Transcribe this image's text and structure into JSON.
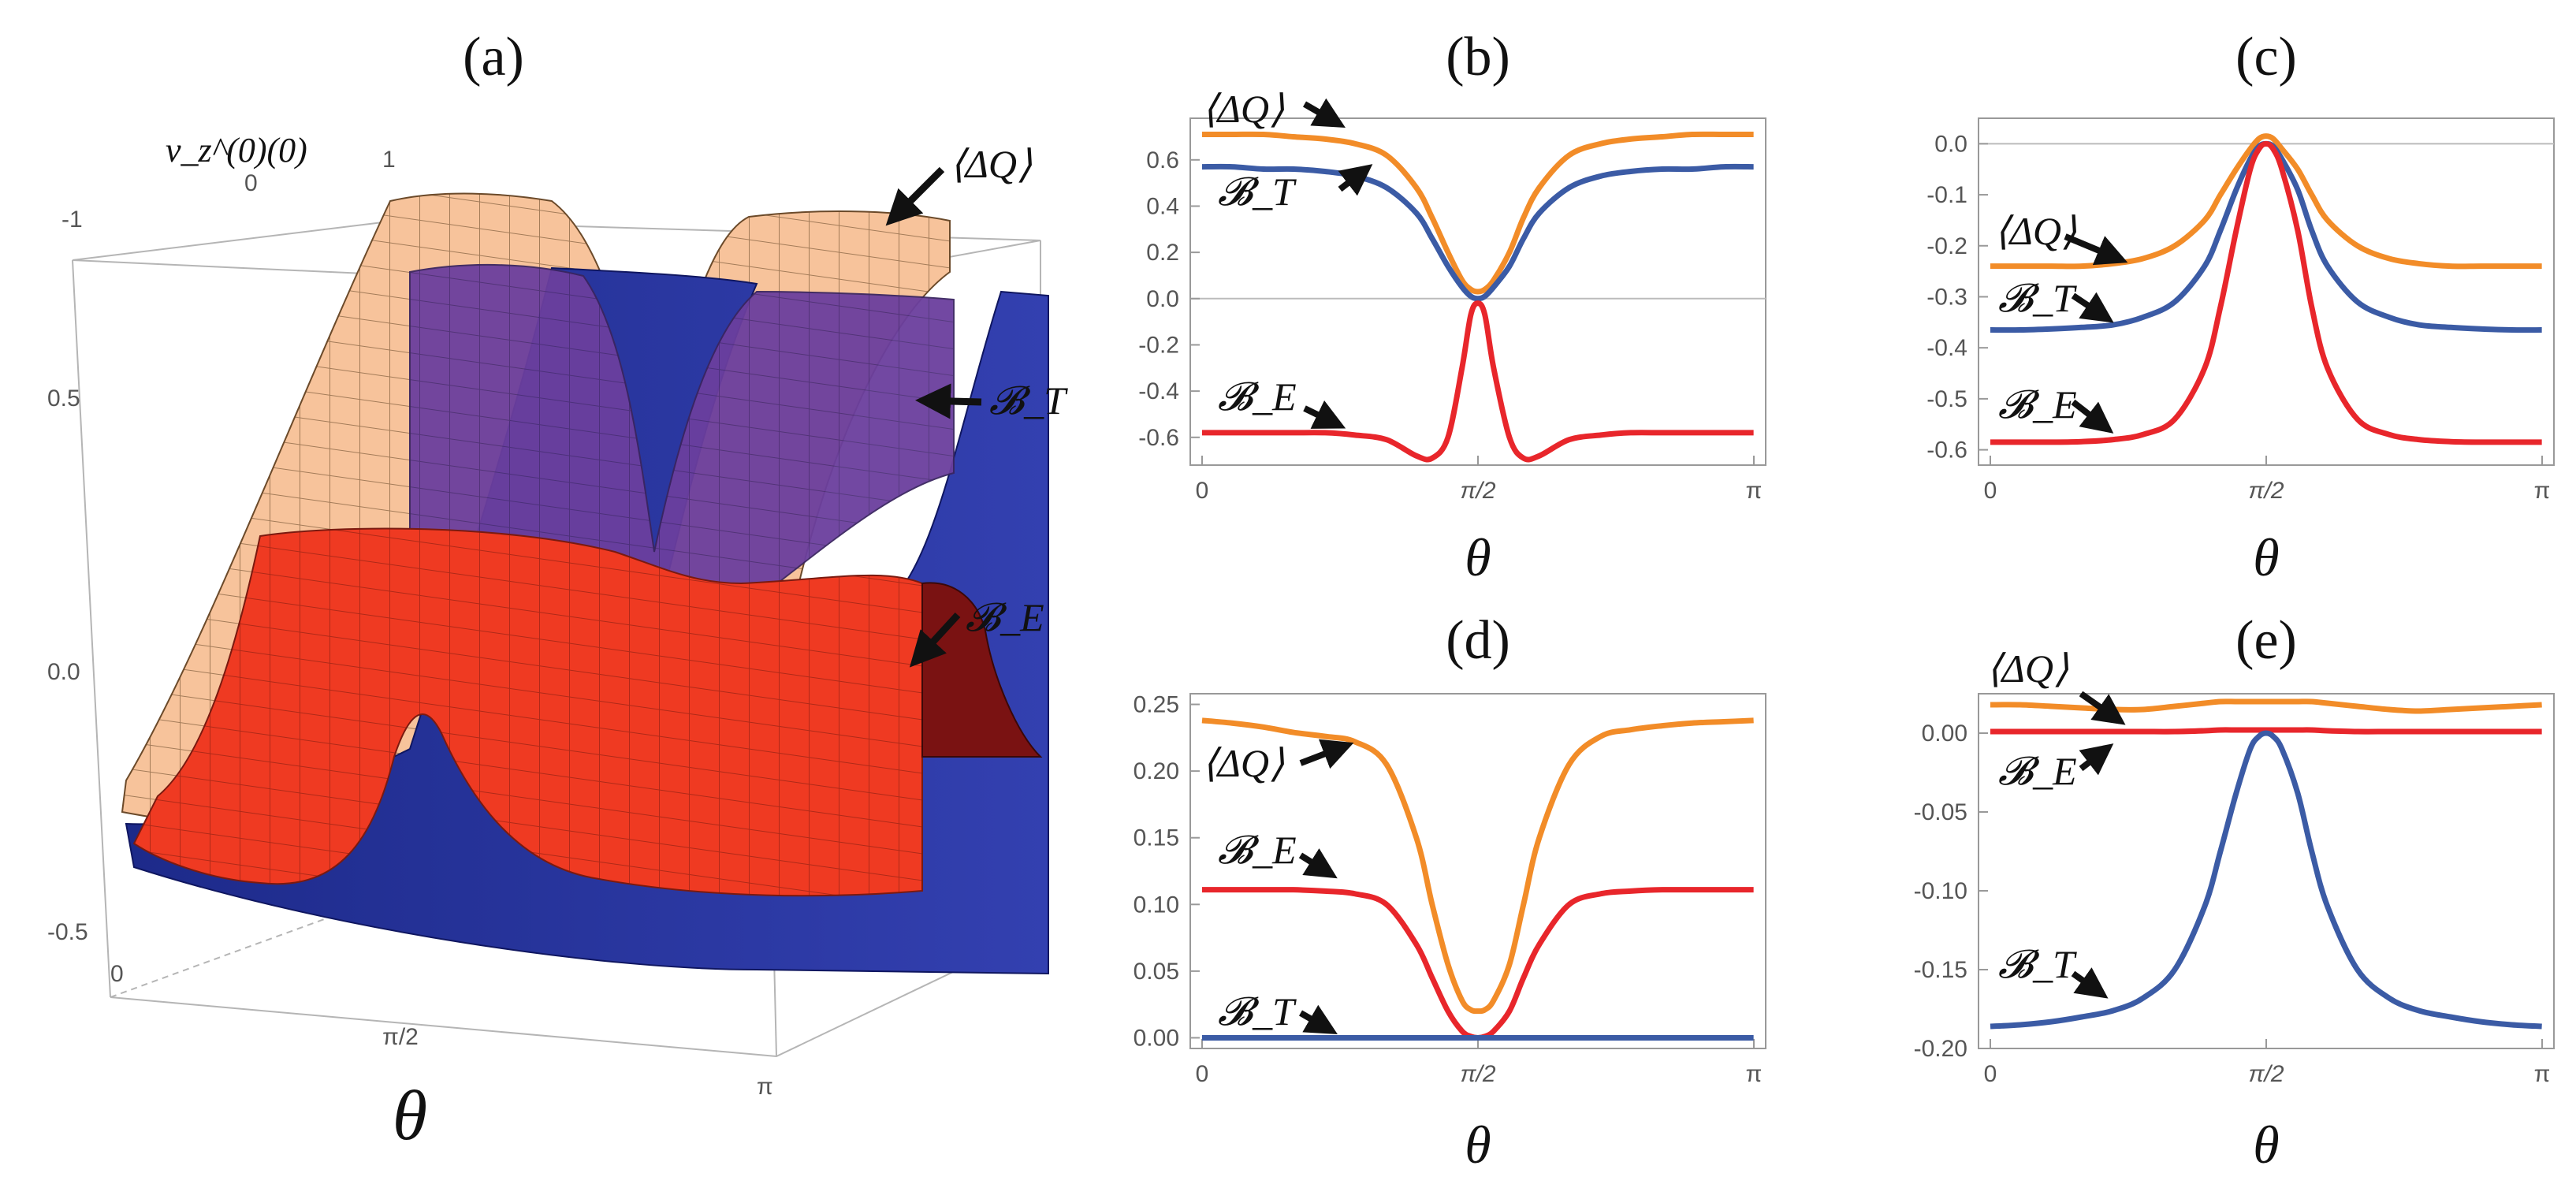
{
  "chart_data": [
    {
      "id": "a",
      "panel_label": "(a)",
      "type": "surface3d",
      "xlabel": "θ",
      "x_ticks": [
        "0",
        "π/2",
        "π"
      ],
      "depth_axis_label": "v_z^(0)(0)",
      "depth_ticks": [
        "-1",
        "0",
        "1"
      ],
      "z_ticks": [
        "0.5",
        "0.0",
        "-0.5"
      ],
      "surfaces": [
        {
          "name": "⟨ΔQ⟩",
          "color": "#f7c39b"
        },
        {
          "name": "𝓑_T",
          "color": "#3b3fa8"
        },
        {
          "name": "𝓑_E",
          "color": "#e8321f"
        }
      ],
      "annotations": [
        "⟨ΔQ⟩",
        "𝓑_T",
        "𝓑_E"
      ]
    },
    {
      "id": "b",
      "panel_label": "(b)",
      "type": "line",
      "xlabel": "θ",
      "x_ticks": [
        "0",
        "π/2",
        "π"
      ],
      "ylim": [
        -0.72,
        0.78
      ],
      "y_ticks": [
        -0.6,
        -0.4,
        -0.2,
        0.0,
        0.2,
        0.4,
        0.6
      ],
      "y_tick_labels": [
        "-0.6",
        "-0.4",
        "-0.2",
        "0.0",
        "0.2",
        "0.4",
        "0.6"
      ],
      "zero_line": true,
      "x": [
        0,
        0.17,
        0.35,
        0.52,
        0.7,
        0.87,
        1.05,
        1.22,
        1.31,
        1.4,
        1.48,
        1.53,
        1.57,
        1.61,
        1.66,
        1.75,
        1.83,
        1.92,
        2.09,
        2.27,
        2.44,
        2.62,
        2.79,
        2.97,
        3.14
      ],
      "series": [
        {
          "name": "⟨ΔQ⟩",
          "color": "#f28c28",
          "values": [
            0.71,
            0.71,
            0.71,
            0.7,
            0.69,
            0.67,
            0.62,
            0.48,
            0.35,
            0.2,
            0.08,
            0.04,
            0.03,
            0.04,
            0.08,
            0.2,
            0.35,
            0.48,
            0.62,
            0.67,
            0.69,
            0.7,
            0.71,
            0.71,
            0.71
          ]
        },
        {
          "name": "𝓑_T",
          "color": "#3b5ba5",
          "values": [
            0.57,
            0.57,
            0.56,
            0.56,
            0.55,
            0.53,
            0.48,
            0.37,
            0.26,
            0.14,
            0.05,
            0.01,
            0.0,
            0.01,
            0.05,
            0.14,
            0.26,
            0.37,
            0.48,
            0.53,
            0.55,
            0.56,
            0.56,
            0.57,
            0.57
          ]
        },
        {
          "name": "𝓑_E",
          "color": "#e8262b",
          "values": [
            -0.58,
            -0.58,
            -0.58,
            -0.58,
            -0.58,
            -0.59,
            -0.61,
            -0.68,
            -0.69,
            -0.6,
            -0.3,
            -0.07,
            -0.02,
            -0.07,
            -0.3,
            -0.6,
            -0.69,
            -0.68,
            -0.61,
            -0.59,
            -0.58,
            -0.58,
            -0.58,
            -0.58,
            -0.58
          ]
        }
      ],
      "annotations": [
        "⟨ΔQ⟩",
        "𝓑_T",
        "𝓑_E"
      ]
    },
    {
      "id": "c",
      "panel_label": "(c)",
      "type": "line",
      "xlabel": "θ",
      "x_ticks": [
        "0",
        "π/2",
        "π"
      ],
      "ylim": [
        -0.63,
        0.05
      ],
      "y_ticks": [
        -0.6,
        -0.5,
        -0.4,
        -0.3,
        -0.2,
        -0.1,
        0.0
      ],
      "y_tick_labels": [
        "-0.6",
        "-0.5",
        "-0.4",
        "-0.3",
        "-0.2",
        "-0.1",
        "0.0"
      ],
      "zero_line": true,
      "x": [
        0,
        0.17,
        0.35,
        0.52,
        0.7,
        0.87,
        1.05,
        1.22,
        1.31,
        1.4,
        1.48,
        1.53,
        1.57,
        1.61,
        1.66,
        1.75,
        1.83,
        1.92,
        2.09,
        2.27,
        2.44,
        2.62,
        2.79,
        2.97,
        3.14
      ],
      "series": [
        {
          "name": "⟨ΔQ⟩",
          "color": "#f28c28",
          "values": [
            -0.24,
            -0.24,
            -0.24,
            -0.24,
            -0.235,
            -0.225,
            -0.2,
            -0.15,
            -0.1,
            -0.05,
            -0.01,
            0.01,
            0.015,
            0.01,
            -0.01,
            -0.05,
            -0.1,
            -0.15,
            -0.2,
            -0.225,
            -0.235,
            -0.24,
            -0.24,
            -0.24,
            -0.24
          ]
        },
        {
          "name": "𝓑_T",
          "color": "#3b5ba5",
          "values": [
            -0.365,
            -0.365,
            -0.363,
            -0.36,
            -0.355,
            -0.34,
            -0.31,
            -0.24,
            -0.17,
            -0.09,
            -0.03,
            -0.005,
            0.0,
            -0.005,
            -0.03,
            -0.09,
            -0.17,
            -0.24,
            -0.31,
            -0.34,
            -0.355,
            -0.36,
            -0.363,
            -0.365,
            -0.365
          ]
        },
        {
          "name": "𝓑_E",
          "color": "#e8262b",
          "values": [
            -0.585,
            -0.585,
            -0.585,
            -0.584,
            -0.58,
            -0.57,
            -0.54,
            -0.44,
            -0.32,
            -0.17,
            -0.05,
            -0.01,
            0.0,
            -0.01,
            -0.05,
            -0.17,
            -0.32,
            -0.44,
            -0.54,
            -0.57,
            -0.58,
            -0.584,
            -0.585,
            -0.585,
            -0.585
          ]
        }
      ],
      "annotations": [
        "⟨ΔQ⟩",
        "𝓑_T",
        "𝓑_E"
      ]
    },
    {
      "id": "d",
      "panel_label": "(d)",
      "type": "line",
      "xlabel": "θ",
      "x_ticks": [
        "0",
        "π/2",
        "π"
      ],
      "ylim": [
        -0.008,
        0.258
      ],
      "y_ticks": [
        0.0,
        0.05,
        0.1,
        0.15,
        0.2,
        0.25
      ],
      "y_tick_labels": [
        "0.00",
        "0.05",
        "0.10",
        "0.15",
        "0.20",
        "0.25"
      ],
      "zero_line": false,
      "x": [
        0,
        0.17,
        0.35,
        0.52,
        0.7,
        0.87,
        1.05,
        1.22,
        1.31,
        1.4,
        1.48,
        1.53,
        1.57,
        1.61,
        1.66,
        1.75,
        1.83,
        1.92,
        2.09,
        2.27,
        2.44,
        2.62,
        2.79,
        2.97,
        3.14
      ],
      "series": [
        {
          "name": "⟨ΔQ⟩",
          "color": "#f28c28",
          "values": [
            0.238,
            0.236,
            0.233,
            0.229,
            0.226,
            0.222,
            0.205,
            0.15,
            0.1,
            0.055,
            0.028,
            0.021,
            0.02,
            0.021,
            0.028,
            0.055,
            0.1,
            0.15,
            0.205,
            0.226,
            0.231,
            0.234,
            0.236,
            0.237,
            0.238
          ]
        },
        {
          "name": "𝓑_E",
          "color": "#e8262b",
          "values": [
            0.111,
            0.111,
            0.111,
            0.111,
            0.11,
            0.108,
            0.1,
            0.07,
            0.045,
            0.02,
            0.005,
            0.001,
            0.0,
            0.001,
            0.005,
            0.02,
            0.045,
            0.07,
            0.1,
            0.108,
            0.11,
            0.111,
            0.111,
            0.111,
            0.111
          ]
        },
        {
          "name": "𝓑_T",
          "color": "#3b5ba5",
          "values": [
            0.0,
            0.0,
            0.0,
            0.0,
            0.0,
            0.0,
            0.0,
            0.0,
            0.0,
            0.0,
            0.0,
            0.0,
            0.0,
            0.0,
            0.0,
            0.0,
            0.0,
            0.0,
            0.0,
            0.0,
            0.0,
            0.0,
            0.0,
            0.0,
            0.0
          ]
        }
      ],
      "annotations": [
        "⟨ΔQ⟩",
        "𝓑_E",
        "𝓑_T"
      ]
    },
    {
      "id": "e",
      "panel_label": "(e)",
      "type": "line",
      "xlabel": "θ",
      "x_ticks": [
        "0",
        "π/2",
        "π"
      ],
      "ylim": [
        -0.2,
        0.025
      ],
      "y_ticks": [
        -0.2,
        -0.15,
        -0.1,
        -0.05,
        0.0
      ],
      "y_tick_labels": [
        "-0.20",
        "-0.15",
        "-0.10",
        "-0.05",
        "0.00"
      ],
      "zero_line": false,
      "x": [
        0,
        0.17,
        0.35,
        0.52,
        0.7,
        0.87,
        1.05,
        1.22,
        1.31,
        1.4,
        1.48,
        1.53,
        1.57,
        1.61,
        1.66,
        1.75,
        1.83,
        1.92,
        2.09,
        2.27,
        2.44,
        2.62,
        2.79,
        2.97,
        3.14
      ],
      "series": [
        {
          "name": "⟨ΔQ⟩",
          "color": "#f28c28",
          "values": [
            0.018,
            0.018,
            0.017,
            0.016,
            0.015,
            0.015,
            0.017,
            0.019,
            0.02,
            0.02,
            0.02,
            0.02,
            0.02,
            0.02,
            0.02,
            0.02,
            0.02,
            0.019,
            0.017,
            0.015,
            0.014,
            0.015,
            0.016,
            0.017,
            0.018
          ]
        },
        {
          "name": "𝓑_E",
          "color": "#e8262b",
          "values": [
            0.001,
            0.001,
            0.001,
            0.001,
            0.001,
            0.001,
            0.001,
            0.0015,
            0.002,
            0.002,
            0.002,
            0.002,
            0.002,
            0.002,
            0.002,
            0.002,
            0.002,
            0.0015,
            0.001,
            0.001,
            0.001,
            0.001,
            0.001,
            0.001,
            0.001
          ]
        },
        {
          "name": "𝓑_T",
          "color": "#3b5ba5",
          "values": [
            -0.186,
            -0.185,
            -0.183,
            -0.18,
            -0.176,
            -0.168,
            -0.15,
            -0.11,
            -0.075,
            -0.038,
            -0.01,
            -0.002,
            0.0,
            -0.002,
            -0.01,
            -0.038,
            -0.075,
            -0.11,
            -0.15,
            -0.168,
            -0.176,
            -0.18,
            -0.183,
            -0.185,
            -0.186
          ]
        }
      ],
      "annotations": [
        "⟨ΔQ⟩",
        "𝓑_E",
        "𝓑_T"
      ]
    }
  ]
}
